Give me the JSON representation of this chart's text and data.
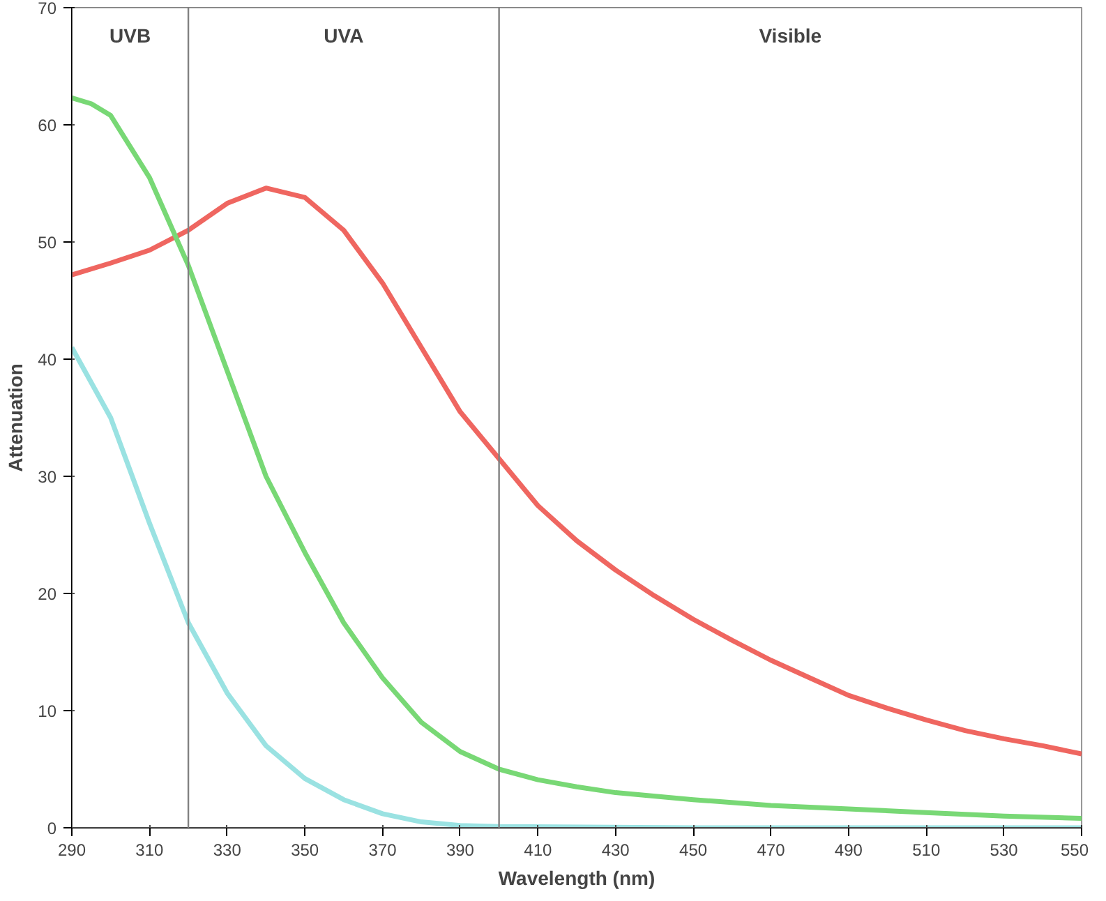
{
  "chart_data": {
    "type": "line",
    "xlabel": "Wavelength (nm)",
    "ylabel": "Attenuation",
    "xlim": [
      290,
      550
    ],
    "xticks": [
      290,
      310,
      330,
      350,
      370,
      390,
      410,
      430,
      450,
      470,
      490,
      510,
      530,
      550
    ],
    "ylim": [
      0,
      70
    ],
    "yticks": [
      0,
      10,
      20,
      30,
      40,
      50,
      60,
      70
    ],
    "grid": false,
    "line_style": "solid",
    "series": [
      {
        "color": "#e8241c",
        "x": [
          290,
          300,
          310,
          320,
          330,
          340,
          350,
          360,
          370,
          380,
          390,
          400,
          410,
          420,
          430,
          440,
          450,
          460,
          470,
          480,
          490,
          500,
          510,
          520,
          530,
          540,
          550
        ],
        "values": [
          47.2,
          48.2,
          49.3,
          51,
          53.3,
          54.6,
          53.8,
          51,
          46.5,
          41,
          35.5,
          31.5,
          27.5,
          24.5,
          22,
          19.8,
          17.8,
          16,
          14.3,
          12.8,
          11.3,
          10.2,
          9.2,
          8.3,
          7.6,
          7,
          6.3
        ]
      },
      {
        "color": "#3ec73a",
        "x": [
          290,
          295,
          300,
          310,
          320,
          330,
          340,
          350,
          360,
          370,
          380,
          390,
          400,
          410,
          420,
          430,
          450,
          470,
          490,
          510,
          530,
          550
        ],
        "values": [
          62.3,
          61.8,
          60.8,
          55.5,
          48,
          39,
          30,
          23.5,
          17.5,
          12.8,
          9,
          6.5,
          5,
          4.1,
          3.5,
          3,
          2.4,
          1.9,
          1.6,
          1.3,
          1,
          0.8
        ]
      },
      {
        "color": "#6fd6d6",
        "x": [
          290,
          300,
          310,
          320,
          330,
          340,
          350,
          360,
          370,
          380,
          390,
          400,
          450,
          550
        ],
        "values": [
          41,
          35,
          26,
          17.5,
          11.5,
          7,
          4.2,
          2.4,
          1.2,
          0.5,
          0.2,
          0.1,
          0,
          0
        ]
      }
    ],
    "ref_lines": [
      {
        "axis": "x",
        "value": 320,
        "color": "#808080"
      },
      {
        "axis": "x",
        "value": 400,
        "color": "#808080"
      }
    ],
    "bands": [
      {
        "axis": "x",
        "from": 290,
        "to": 320,
        "label": "UVB",
        "color": "#ffffff"
      },
      {
        "axis": "x",
        "from": 320,
        "to": 400,
        "label": "UVA",
        "color": "#ffffff"
      },
      {
        "axis": "x",
        "from": 400,
        "to": 550,
        "label": "Visible",
        "color": "#ffffff"
      }
    ]
  }
}
